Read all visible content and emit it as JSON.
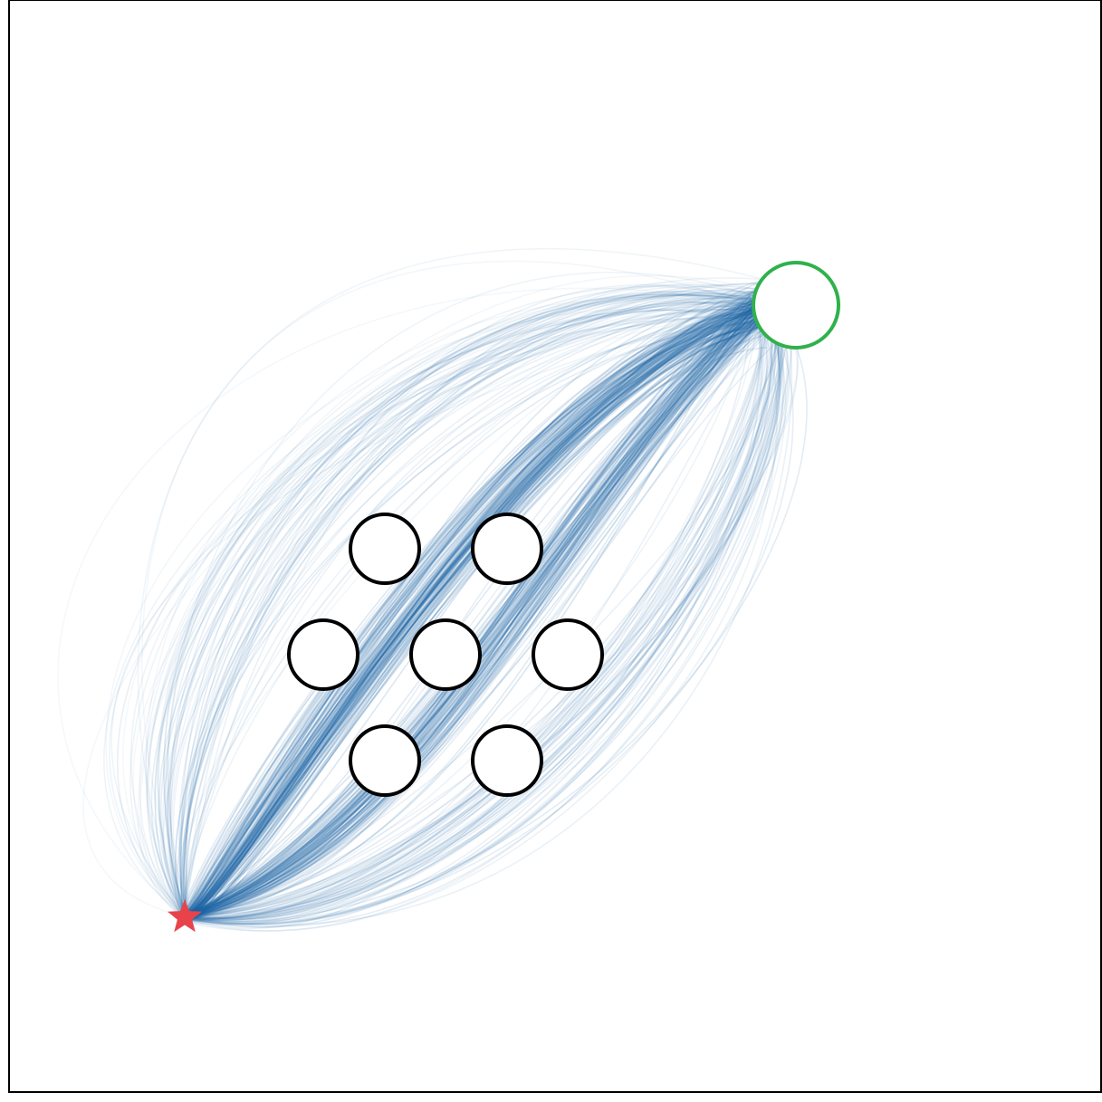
{
  "scene": {
    "frame": {
      "stroke": "#000000"
    },
    "trajectory_color": "#1f66a6",
    "obstacle_stroke": "#000000",
    "goal_stroke": "#2fb14c",
    "start_marker": {
      "shape": "star",
      "color": "#e8434b"
    },
    "obstacle_count": 7,
    "goal_shape": "circle",
    "start_icon": "star-icon"
  }
}
